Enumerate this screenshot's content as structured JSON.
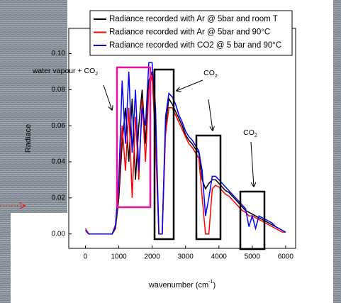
{
  "chart_data": {
    "type": "line",
    "legend": [
      "Radiance recorded with Ar @ 5bar and room T",
      "Radiance recorded with Ar @ 5bar and 90°C",
      "Radiance recorded with CO2 @ 5 bar and 90°C"
    ],
    "ylabel": "Radiace",
    "xlabel": {
      "text": "wavenumber (cm",
      "sup": "-1",
      "end": ")"
    },
    "annotations": [
      {
        "text": "water vapour + CO",
        "sub": "2",
        "color": "#e8109c"
      },
      {
        "text": "CO",
        "sub": "2",
        "color": "#000000"
      },
      {
        "text": "CO",
        "sub": "2",
        "color": "#000000"
      }
    ],
    "x": [
      0,
      100,
      200,
      300,
      400,
      500,
      600,
      700,
      800,
      900,
      1000,
      1100,
      1200,
      1300,
      1400,
      1500,
      1600,
      1700,
      1800,
      1900,
      2000,
      2100,
      2200,
      2300,
      2400,
      2500,
      2600,
      2700,
      2800,
      2900,
      3000,
      3100,
      3200,
      3300,
      3400,
      3500,
      3600,
      3700,
      3800,
      3900,
      4000,
      4100,
      4200,
      4300,
      4400,
      4500,
      4600,
      4700,
      4800,
      4900,
      5000,
      5100,
      5200,
      5300,
      5400,
      5500,
      5600,
      5700,
      5800,
      5900,
      6000
    ],
    "series": [
      {
        "name": "Radiance recorded with Ar @ 5bar and room T",
        "color": "#000000",
        "values": [
          0.002,
          0,
          0,
          0,
          0,
          0,
          0,
          0,
          0,
          0.003,
          0.02,
          0.05,
          0.07,
          0.04,
          0.075,
          0.03,
          0.06,
          0.08,
          0.05,
          0.085,
          0.09,
          0.06,
          0.0,
          0.0,
          0.06,
          0.075,
          0.072,
          0.068,
          0.064,
          0.06,
          0.055,
          0.052,
          0.05,
          0.047,
          0.045,
          0.03,
          0.025,
          0.028,
          0.03,
          0.03,
          0.028,
          0.026,
          0.024,
          0.023,
          0.021,
          0.019,
          0.017,
          0.015,
          0.013,
          0.012,
          0.011,
          0.01,
          0.009,
          0.008,
          0.007,
          0.006,
          0.005,
          0.004,
          0.003,
          0.002,
          0.001
        ]
      },
      {
        "name": "Radiance recorded with Ar @ 5bar and 90°C",
        "color": "#ff0000",
        "values": [
          0.003,
          0,
          0,
          0,
          0,
          0,
          0,
          0,
          0,
          0.004,
          0.025,
          0.06,
          0.035,
          0.07,
          0.02,
          0.065,
          0.03,
          0.075,
          0.04,
          0.08,
          0.088,
          0.05,
          0.0,
          0.0,
          0.055,
          0.07,
          0.07,
          0.066,
          0.062,
          0.058,
          0.054,
          0.05,
          0.048,
          0.045,
          0.042,
          0.02,
          0.0,
          0.0,
          0.025,
          0.027,
          0.026,
          0.024,
          0.022,
          0.021,
          0.019,
          0.017,
          0.015,
          0.013,
          0.012,
          0.01,
          0.01,
          0.009,
          0.008,
          0.007,
          0.006,
          0.005,
          0.004,
          0.003,
          0.002,
          0.001,
          0.001
        ]
      },
      {
        "name": "Radiance recorded with CO2 @ 5 bar and 90°C",
        "color": "#0000ff",
        "values": [
          0.002,
          0,
          0,
          0,
          0,
          0,
          0,
          0,
          0,
          0.005,
          0.03,
          0.085,
          0.05,
          0.09,
          0.045,
          0.08,
          0.035,
          0.07,
          0.06,
          0.095,
          0.095,
          0.07,
          0.0,
          0.0,
          0.065,
          0.078,
          0.076,
          0.072,
          0.066,
          0.062,
          0.057,
          0.054,
          0.052,
          0.049,
          0.046,
          0.035,
          0.01,
          0.02,
          0.032,
          0.032,
          0.03,
          0.028,
          0.026,
          0.024,
          0.022,
          0.02,
          0.018,
          0.016,
          0.014,
          0.004,
          0.01,
          0.003,
          0.01,
          0.009,
          0.008,
          0.007,
          0.006,
          0.004,
          0.003,
          0.002,
          0.001
        ]
      }
    ],
    "xlim": [
      -500,
      6300
    ],
    "ylim": [
      -0.008,
      0.114
    ],
    "xticks": [
      0,
      1000,
      2000,
      3000,
      4000,
      5000,
      6000
    ],
    "yticks": [
      {
        "value": 0,
        "label": "0.00"
      },
      {
        "value": 0.02,
        "label": "0.02"
      },
      {
        "value": 0.04,
        "label": "0.04"
      },
      {
        "value": 0.06,
        "label": "0.06"
      },
      {
        "value": 0.08,
        "label": "0.08"
      },
      {
        "value": 0.1,
        "label": "0.10"
      }
    ]
  }
}
